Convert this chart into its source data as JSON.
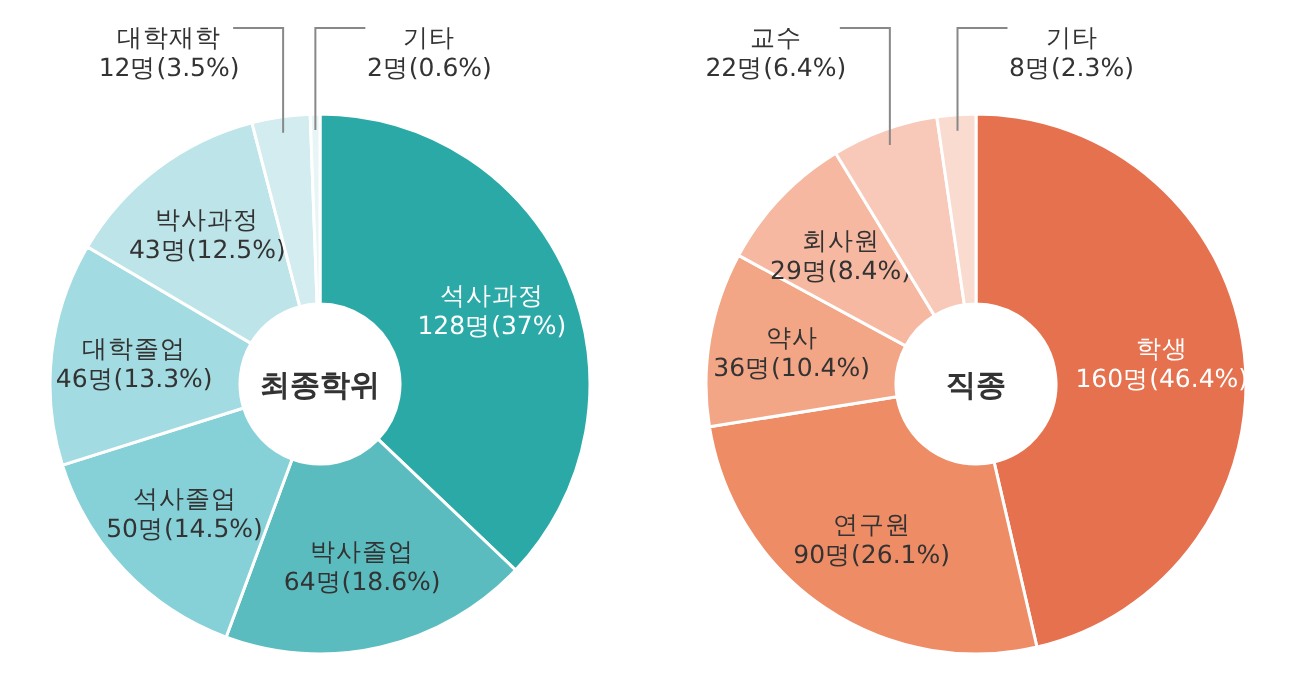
{
  "chart_data": [
    {
      "type": "donut",
      "title": "최종학위",
      "categories": [
        "석사과정",
        "박사졸업",
        "석사졸업",
        "대학졸업",
        "박사과정",
        "대학재학",
        "기타"
      ],
      "values": [
        128,
        64,
        50,
        46,
        43,
        12,
        2
      ],
      "value_labels": [
        "128명(37%)",
        "64명(18.6%)",
        "50명(14.5%)",
        "46명(13.3%)",
        "43명(12.5%)",
        "12명(3.5%)",
        "2명(0.6%)"
      ],
      "colors": [
        "#2aa9a7",
        "#5bbcc0",
        "#86d0d8",
        "#a2dbe1",
        "#bde4e8",
        "#d2ecef",
        "#e8f5f6"
      ]
    },
    {
      "type": "donut",
      "title": "직종",
      "categories": [
        "학생",
        "연구원",
        "약사",
        "회사원",
        "교수",
        "기타"
      ],
      "values": [
        160,
        90,
        36,
        29,
        22,
        8
      ],
      "value_labels": [
        "160명(46.4%)",
        "90명(26.1%)",
        "36명(10.4%)",
        "29명(8.4%)",
        "22명(6.4%)",
        "8명(2.3%)"
      ],
      "colors": [
        "#e6714f",
        "#ee8c66",
        "#f3a685",
        "#f6b8a0",
        "#f8c9b8",
        "#f9dbd0"
      ]
    }
  ]
}
